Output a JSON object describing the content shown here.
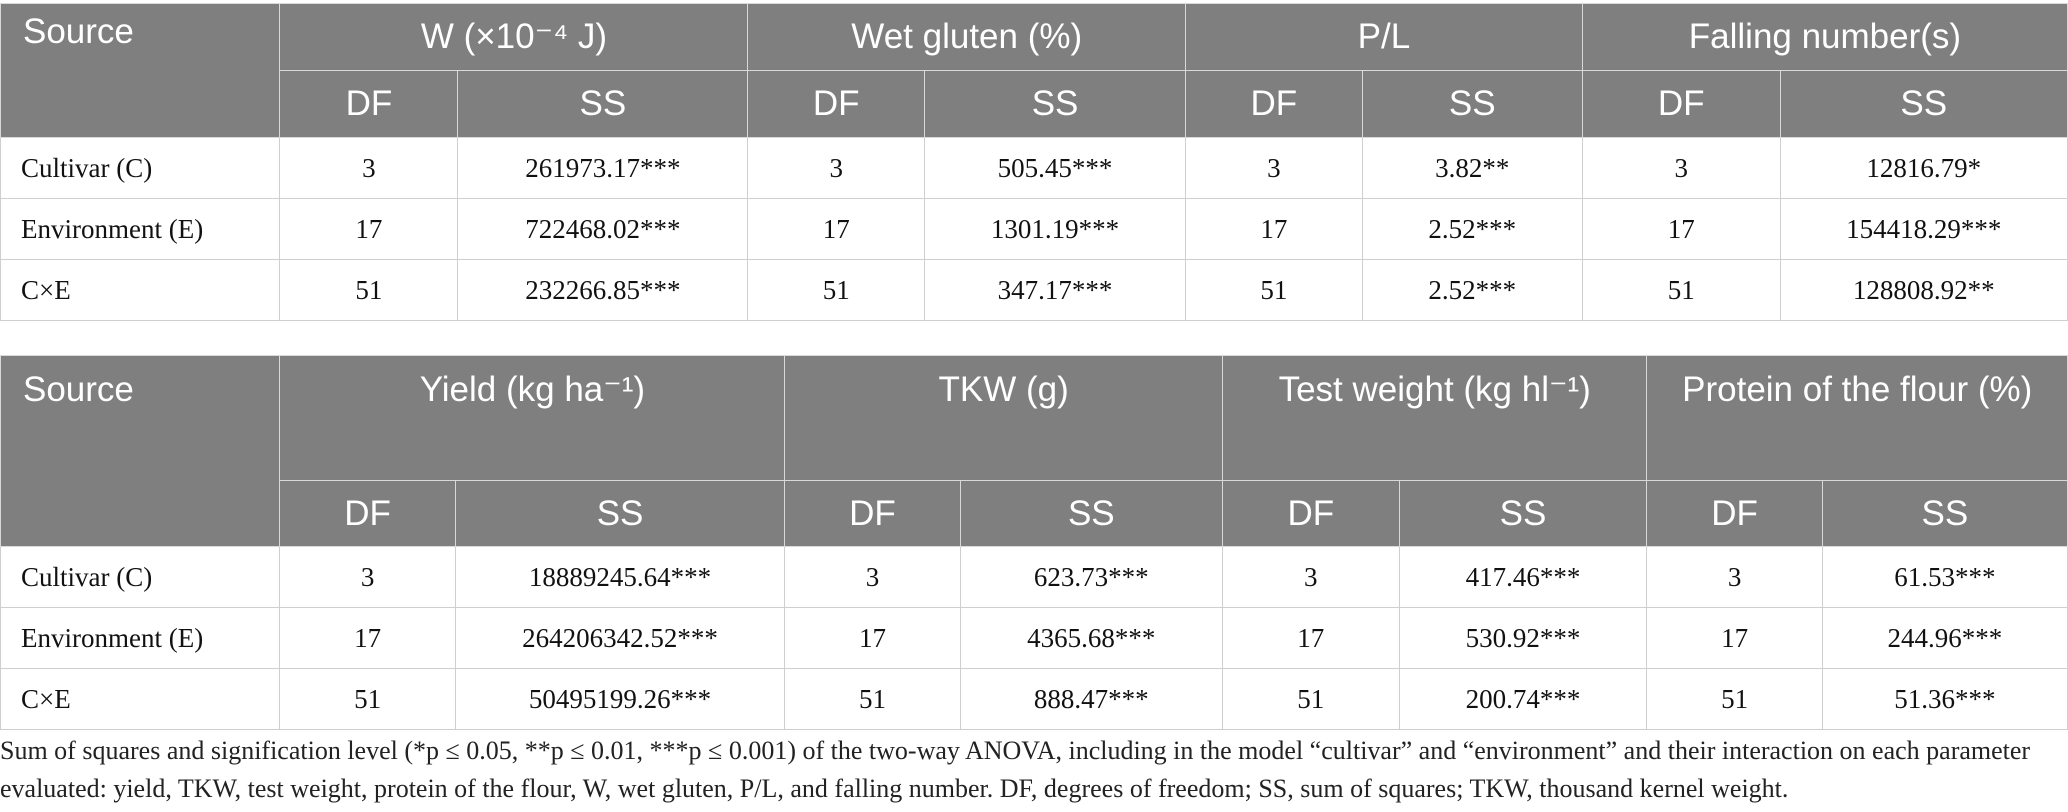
{
  "table1": {
    "source_header": "Source",
    "groups": [
      "W (×10⁻⁴ J)",
      "Wet gluten (%)",
      "P/L",
      "Falling number(s)"
    ],
    "sub_headers": [
      "DF",
      "SS",
      "DF",
      "SS",
      "DF",
      "SS",
      "DF",
      "SS"
    ],
    "rows": [
      {
        "label": "Cultivar (C)",
        "cells": [
          "3",
          "261973.17***",
          "3",
          "505.45***",
          "3",
          "3.82**",
          "3",
          "12816.79*"
        ]
      },
      {
        "label": "Environment (E)",
        "cells": [
          "17",
          "722468.02***",
          "17",
          "1301.19***",
          "17",
          "2.52***",
          "17",
          "154418.29***"
        ]
      },
      {
        "label": "C×E",
        "cells": [
          "51",
          "232266.85***",
          "51",
          "347.17***",
          "51",
          "2.52***",
          "51",
          "128808.92**"
        ]
      }
    ]
  },
  "table2": {
    "source_header": "Source",
    "groups": [
      "Yield (kg ha⁻¹)",
      "TKW (g)",
      "Test weight (kg hl⁻¹)",
      "Protein of the flour (%)"
    ],
    "sub_headers": [
      "DF",
      "SS",
      "DF",
      "SS",
      "DF",
      "SS",
      "DF",
      "SS"
    ],
    "rows": [
      {
        "label": "Cultivar (C)",
        "cells": [
          "3",
          "18889245.64***",
          "3",
          "623.73***",
          "3",
          "417.46***",
          "3",
          "61.53***"
        ]
      },
      {
        "label": "Environment (E)",
        "cells": [
          "17",
          "264206342.52***",
          "17",
          "4365.68***",
          "17",
          "530.92***",
          "17",
          "244.96***"
        ]
      },
      {
        "label": "C×E",
        "cells": [
          "51",
          "50495199.26***",
          "51",
          "888.47***",
          "51",
          "200.74***",
          "51",
          "51.36***"
        ]
      }
    ]
  },
  "footnote": "Sum of squares and signification level (*p ≤ 0.05, **p ≤ 0.01, ***p ≤ 0.001) of the two-way ANOVA, including in the model “cultivar” and “environment” and their interaction on each parameter evaluated: yield, TKW, test weight, protein of the flour, W, wet gluten, P/L, and falling number. DF, degrees of freedom; SS, sum of squares; TKW, thousand kernel weight."
}
